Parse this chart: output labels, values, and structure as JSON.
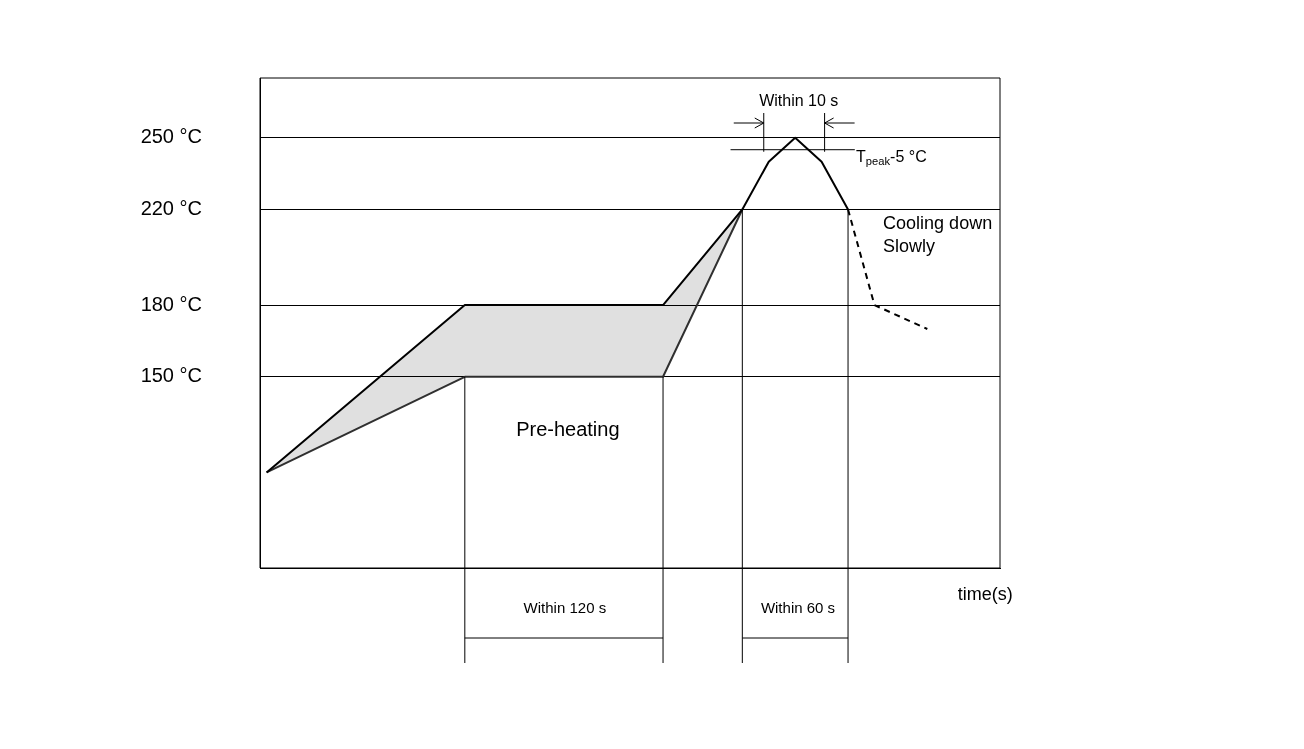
{
  "chart_data": {
    "type": "line",
    "categories": [
      null,
      null,
      null,
      null,
      null,
      null,
      null,
      null,
      null,
      null,
      null,
      null,
      null,
      null,
      null,
      null,
      null,
      null,
      null,
      null,
      null,
      null,
      null,
      null,
      null,
      null,
      null,
      null,
      null,
      null,
      null,
      null,
      null,
      null,
      null,
      null,
      null,
      null,
      null,
      null,
      null,
      null,
      null,
      null,
      null,
      null,
      null,
      null,
      null,
      null,
      null,
      null,
      null,
      null,
      null,
      null
    ],
    "series": [
      {
        "color": "#000000",
        "values": [
          110,
          null,
          null,
          null,
          null,
          null,
          null,
          null,
          null,
          null,
          null,
          null,
          null,
          null,
          null,
          180,
          null,
          null,
          null,
          null,
          null,
          null,
          null,
          null,
          null,
          null,
          null,
          null,
          null,
          null,
          180,
          null,
          null,
          null,
          null,
          null,
          220,
          null,
          240,
          null,
          250,
          null,
          240,
          null,
          220,
          null,
          null,
          null,
          null,
          null,
          null,
          null,
          null,
          null,
          null,
          null
        ],
        "upper": [
          110,
          null,
          null,
          null,
          null,
          null,
          null,
          null,
          null,
          null,
          null,
          null,
          null,
          null,
          null,
          180,
          null,
          null,
          null,
          null,
          null,
          null,
          null,
          null,
          null,
          null,
          null,
          null,
          null,
          null,
          180,
          null,
          null,
          null,
          null,
          null,
          220,
          null,
          null,
          null,
          null,
          null,
          null,
          null,
          null,
          null,
          null,
          null,
          null,
          null,
          null,
          null,
          null,
          null,
          null,
          null
        ],
        "lower": [
          110,
          null,
          null,
          null,
          null,
          null,
          null,
          null,
          null,
          null,
          null,
          null,
          null,
          null,
          null,
          150,
          null,
          null,
          null,
          null,
          null,
          null,
          null,
          null,
          null,
          null,
          null,
          null,
          null,
          null,
          150,
          null,
          null,
          null,
          null,
          null,
          220,
          null,
          null,
          null,
          null,
          null,
          null,
          null,
          null,
          null,
          null,
          null,
          null,
          null,
          null,
          null,
          null,
          null,
          null,
          null
        ]
      },
      {
        "color": "#333333",
        "values": [
          110,
          null,
          null,
          null,
          null,
          null,
          null,
          null,
          null,
          null,
          null,
          null,
          null,
          null,
          null,
          150,
          null,
          null,
          null,
          null,
          null,
          null,
          null,
          null,
          null,
          null,
          null,
          null,
          null,
          null,
          150,
          null,
          null,
          null,
          null,
          null,
          220,
          null,
          null,
          null,
          null,
          null,
          null,
          null,
          null,
          null,
          null,
          null,
          null,
          null,
          null,
          null,
          null,
          null,
          null,
          null
        ]
      },
      {
        "color": "#000000",
        "line_style": "dashed",
        "values": [
          null,
          null,
          null,
          null,
          null,
          null,
          null,
          null,
          null,
          null,
          null,
          null,
          null,
          null,
          null,
          null,
          null,
          null,
          null,
          null,
          null,
          null,
          null,
          null,
          null,
          null,
          null,
          null,
          null,
          null,
          null,
          null,
          null,
          null,
          null,
          null,
          null,
          null,
          null,
          null,
          null,
          null,
          null,
          null,
          220,
          null,
          180,
          null,
          null,
          null,
          170,
          null,
          null,
          null,
          null,
          null
        ]
      }
    ],
    "ylim": [
      70,
      275
    ],
    "yticks": [
      {
        "value": 150,
        "label": "150 °C"
      },
      {
        "value": 180,
        "label": "180 °C"
      },
      {
        "value": 220,
        "label": "220 °C"
      },
      {
        "value": 250,
        "label": "250 °C"
      }
    ],
    "ref_lines": [
      {
        "axis": "y",
        "value": 245,
        "label": "T$_{peak}$-5 °C"
      }
    ],
    "annotations": [
      "Within 10 s",
      "Cooling down",
      "Slowly",
      "Pre-heating",
      "Within 120 s",
      "Within 60 s",
      "time(s)"
    ],
    "grid": "y",
    "legend": false,
    "marker": "none"
  }
}
